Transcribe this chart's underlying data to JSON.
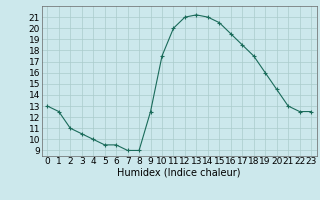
{
  "x": [
    0,
    1,
    2,
    3,
    4,
    5,
    6,
    7,
    8,
    9,
    10,
    11,
    12,
    13,
    14,
    15,
    16,
    17,
    18,
    19,
    20,
    21,
    22,
    23
  ],
  "y": [
    13,
    12.5,
    11,
    10.5,
    10,
    9.5,
    9.5,
    9,
    9,
    12.5,
    17.5,
    20,
    21,
    21.2,
    21,
    20.5,
    19.5,
    18.5,
    17.5,
    16,
    14.5,
    13,
    12.5,
    12.5
  ],
  "line_color": "#1a6b5a",
  "marker_color": "#1a6b5a",
  "bg_color": "#cce8ec",
  "grid_color": "#aacccc",
  "xlabel": "Humidex (Indice chaleur)",
  "xlim": [
    -0.5,
    23.5
  ],
  "ylim": [
    8.5,
    22
  ],
  "yticks": [
    9,
    10,
    11,
    12,
    13,
    14,
    15,
    16,
    17,
    18,
    19,
    20,
    21
  ],
  "xticks": [
    0,
    1,
    2,
    3,
    4,
    5,
    6,
    7,
    8,
    9,
    10,
    11,
    12,
    13,
    14,
    15,
    16,
    17,
    18,
    19,
    20,
    21,
    22,
    23
  ],
  "xlabel_fontsize": 7,
  "tick_fontsize": 6.5
}
